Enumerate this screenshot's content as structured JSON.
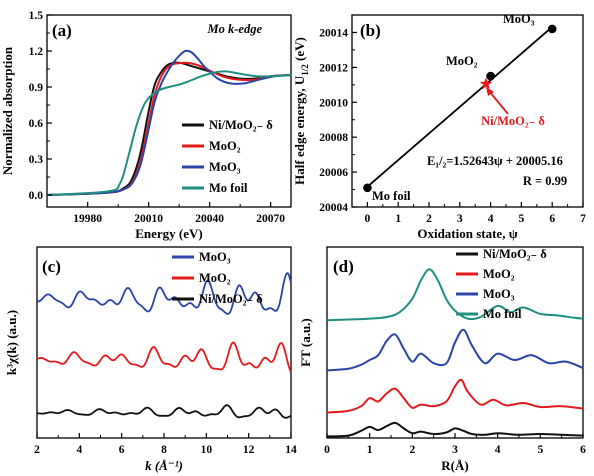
{
  "chart_data": [
    {
      "type": "line",
      "panel_label": "(a)",
      "title": "Mo k-edge",
      "xlabel": "Energy (eV)",
      "ylabel": "Normalized absorption",
      "xlim": [
        19960,
        20080
      ],
      "ylim": [
        -0.1,
        1.5
      ],
      "xticks": [
        "19980",
        "20010",
        "20040",
        "20070"
      ],
      "yticks": [
        "0.0",
        "0.3",
        "0.6",
        "0.9",
        "1.2",
        "1.5"
      ],
      "legend": "center-right",
      "series": [
        {
          "name": "Ni/MoO₂₋ δ",
          "color": "#111111",
          "x": [
            19960,
            19990,
            19998,
            20002,
            20006,
            20010,
            20013,
            20016,
            20019,
            20022,
            20026,
            20030,
            20036,
            20042,
            20048,
            20055,
            20062,
            20070,
            20080
          ],
          "y": [
            0.0,
            0.02,
            0.06,
            0.14,
            0.35,
            0.7,
            0.92,
            1.02,
            1.08,
            1.1,
            1.1,
            1.08,
            1.05,
            1.02,
            0.99,
            0.97,
            0.97,
            0.99,
            1.0
          ]
        },
        {
          "name": "MoO₂",
          "color": "#e41a1c",
          "x": [
            19960,
            19990,
            19998,
            20002,
            20006,
            20010,
            20013,
            20016,
            20019,
            20022,
            20026,
            20030,
            20036,
            20042,
            20048,
            20055,
            20062,
            20070,
            20080
          ],
          "y": [
            0.0,
            0.02,
            0.05,
            0.11,
            0.28,
            0.6,
            0.84,
            0.98,
            1.06,
            1.09,
            1.1,
            1.1,
            1.07,
            1.02,
            0.98,
            0.96,
            0.96,
            0.99,
            1.0
          ]
        },
        {
          "name": "MoO₃",
          "color": "#2b44a8",
          "x": [
            19960,
            19990,
            19998,
            20002,
            20006,
            20010,
            20013,
            20016,
            20019,
            20022,
            20025,
            20028,
            20031,
            20034,
            20038,
            20044,
            20050,
            20057,
            20064,
            20072,
            20080
          ],
          "y": [
            0.0,
            0.02,
            0.05,
            0.1,
            0.25,
            0.55,
            0.78,
            0.92,
            1.02,
            1.1,
            1.16,
            1.2,
            1.19,
            1.14,
            1.06,
            0.97,
            0.93,
            0.93,
            0.96,
            0.99,
            1.0
          ]
        },
        {
          "name": "Mo foil",
          "color": "#1f8f82",
          "x": [
            19960,
            19990,
            19996,
            20000,
            20004,
            20008,
            20012,
            20016,
            20020,
            20025,
            20030,
            20036,
            20042,
            20048,
            20055,
            20063,
            20072,
            20080
          ],
          "y": [
            0.0,
            0.03,
            0.1,
            0.32,
            0.58,
            0.76,
            0.84,
            0.88,
            0.9,
            0.92,
            0.95,
            0.99,
            1.02,
            1.03,
            1.01,
            0.99,
            0.99,
            1.0
          ]
        }
      ]
    },
    {
      "type": "scatter",
      "panel_label": "(b)",
      "xlabel": "Oxidation state, ψ",
      "ylabel_main": "Half edge energy, U",
      "ylabel_sub": "1/2",
      "ylabel_unit": " (eV)",
      "xlim": [
        -0.5,
        7
      ],
      "ylim": [
        20004,
        20015
      ],
      "xticks": [
        "0",
        "1",
        "2",
        "3",
        "4",
        "5",
        "6",
        "7"
      ],
      "yticks": [
        "20004",
        "20006",
        "20008",
        "20010",
        "20012",
        "20014"
      ],
      "points": [
        {
          "label": "Mo foil",
          "x": 0,
          "y": 20005.1,
          "color": "#000000",
          "marker": "circle"
        },
        {
          "label": "MoO₂",
          "x": 4,
          "y": 20011.5,
          "color": "#000000",
          "marker": "circle"
        },
        {
          "label": "MoO₃",
          "x": 6,
          "y": 20014.2,
          "color": "#000000",
          "marker": "circle"
        },
        {
          "label": "Ni/MoO₂₋ δ",
          "x": 3.85,
          "y": 20011.05,
          "color": "#e41a1c",
          "marker": "star"
        }
      ],
      "fit": {
        "slope": 1.52643,
        "intercept": 20005.16
      },
      "equation": "E₁/₂=1.52643ψ + 20005.16",
      "r_text": "R = 0.99"
    },
    {
      "type": "line",
      "panel_label": "(c)",
      "xlabel": "k (Å⁻¹)",
      "ylabel": "k³χ(k) (a.u.)",
      "xlim": [
        2,
        14
      ],
      "xticks": [
        "2",
        "4",
        "6",
        "8",
        "10",
        "12",
        "14"
      ],
      "legend": "top-right",
      "series": [
        {
          "name": "MoO₃",
          "color": "#2b44a8",
          "offset": 7.6,
          "amp": 1.3
        },
        {
          "name": "MoO₂",
          "color": "#e41a1c",
          "offset": 4.3,
          "amp": 1.05
        },
        {
          "name": "Ni/MoO₂₋ δ",
          "color": "#111111",
          "offset": 1.4,
          "amp": 0.45
        }
      ]
    },
    {
      "type": "line",
      "panel_label": "(d)",
      "xlabel": "R(Å)",
      "ylabel": "FT (a.u.)",
      "xlim": [
        0,
        6
      ],
      "xticks": [
        "0",
        "1",
        "2",
        "3",
        "4",
        "5",
        "6"
      ],
      "legend": "top-right",
      "series": [
        {
          "name": "Ni/MoO₂₋ δ",
          "color": "#111111",
          "x": [
            0,
            0.5,
            0.8,
            1.0,
            1.2,
            1.4,
            1.6,
            1.8,
            2.0,
            2.2,
            2.5,
            2.8,
            3.0,
            3.2,
            3.4,
            3.7,
            4.0,
            4.5,
            5.0,
            5.5,
            6.0
          ],
          "y": [
            0.2,
            0.3,
            0.9,
            1.4,
            1.0,
            1.5,
            1.9,
            1.2,
            0.6,
            0.8,
            0.5,
            0.7,
            1.2,
            0.9,
            0.5,
            0.4,
            0.6,
            0.4,
            0.5,
            0.4,
            0.3
          ]
        },
        {
          "name": "MoO₂",
          "color": "#e41a1c",
          "x": [
            0,
            0.5,
            0.8,
            1.0,
            1.2,
            1.4,
            1.6,
            1.8,
            2.0,
            2.2,
            2.5,
            2.8,
            3.0,
            3.15,
            3.3,
            3.6,
            3.9,
            4.2,
            4.6,
            5.0,
            5.5,
            6.0
          ],
          "y": [
            3.2,
            3.4,
            4.0,
            5.0,
            4.6,
            5.6,
            6.2,
            5.0,
            3.8,
            4.2,
            4.0,
            4.6,
            6.5,
            7.3,
            5.8,
            4.2,
            4.8,
            4.1,
            4.4,
            3.9,
            4.0,
            3.7
          ]
        },
        {
          "name": "MoO₃",
          "color": "#2b44a8",
          "x": [
            0,
            0.5,
            0.8,
            1.0,
            1.2,
            1.4,
            1.6,
            1.8,
            2.0,
            2.2,
            2.5,
            2.8,
            3.0,
            3.2,
            3.4,
            3.7,
            4.0,
            4.4,
            4.8,
            5.2,
            5.6,
            6.0
          ],
          "y": [
            8.5,
            8.7,
            9.2,
            9.8,
            10.4,
            12.2,
            13.0,
            11.2,
            9.6,
            10.6,
            9.4,
            9.4,
            12.0,
            13.6,
            11.6,
            9.4,
            10.6,
            9.8,
            10.4,
            9.4,
            9.6,
            8.8
          ]
        },
        {
          "name": "Mo foil",
          "color": "#1f8f82",
          "x": [
            0,
            0.6,
            1.0,
            1.4,
            1.7,
            2.0,
            2.2,
            2.4,
            2.6,
            2.8,
            3.0,
            3.3,
            3.6,
            4.0,
            4.3,
            4.6,
            5.0,
            5.4,
            5.8,
            6.0
          ],
          "y": [
            14.8,
            14.9,
            15.0,
            15.2,
            15.8,
            17.5,
            19.8,
            21.2,
            19.8,
            17.4,
            16.0,
            15.0,
            15.2,
            16.6,
            15.8,
            16.4,
            15.6,
            15.4,
            15.1,
            15.0
          ]
        }
      ]
    }
  ]
}
